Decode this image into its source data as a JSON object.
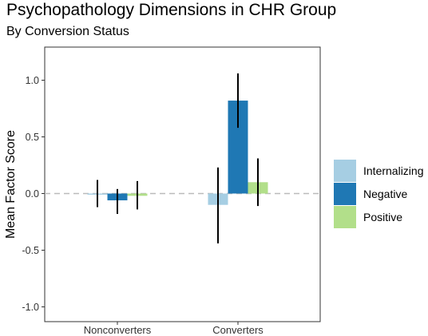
{
  "chart_data": {
    "type": "bar",
    "title": "Psychopathology Dimensions in CHR Group",
    "subtitle": "By Conversion Status",
    "xlabel": "",
    "ylabel": "Mean Factor Score",
    "ylim": [
      -1.1,
      1.3
    ],
    "yticks": [
      "1.0",
      "0.5",
      "0.0",
      "-0.5",
      "-1.0"
    ],
    "ytick_values": [
      1.0,
      0.5,
      0.0,
      -0.5,
      -1.0
    ],
    "categories": [
      "Nonconverters",
      "Converters"
    ],
    "reference_line": 0,
    "grid": false,
    "legend_position": "right",
    "series": [
      {
        "name": "Internalizing",
        "color": "#a6cee3",
        "values": [
          -0.01,
          -0.1
        ],
        "err_low": [
          -0.12,
          -0.44
        ],
        "err_high": [
          0.12,
          0.23
        ]
      },
      {
        "name": "Negative",
        "color": "#1f78b4",
        "values": [
          -0.06,
          0.82
        ],
        "err_low": [
          -0.18,
          0.58
        ],
        "err_high": [
          0.04,
          1.06
        ]
      },
      {
        "name": "Positive",
        "color": "#b2df8a",
        "values": [
          -0.02,
          0.1
        ],
        "err_low": [
          -0.14,
          -0.11
        ],
        "err_high": [
          0.11,
          0.31
        ]
      }
    ]
  }
}
